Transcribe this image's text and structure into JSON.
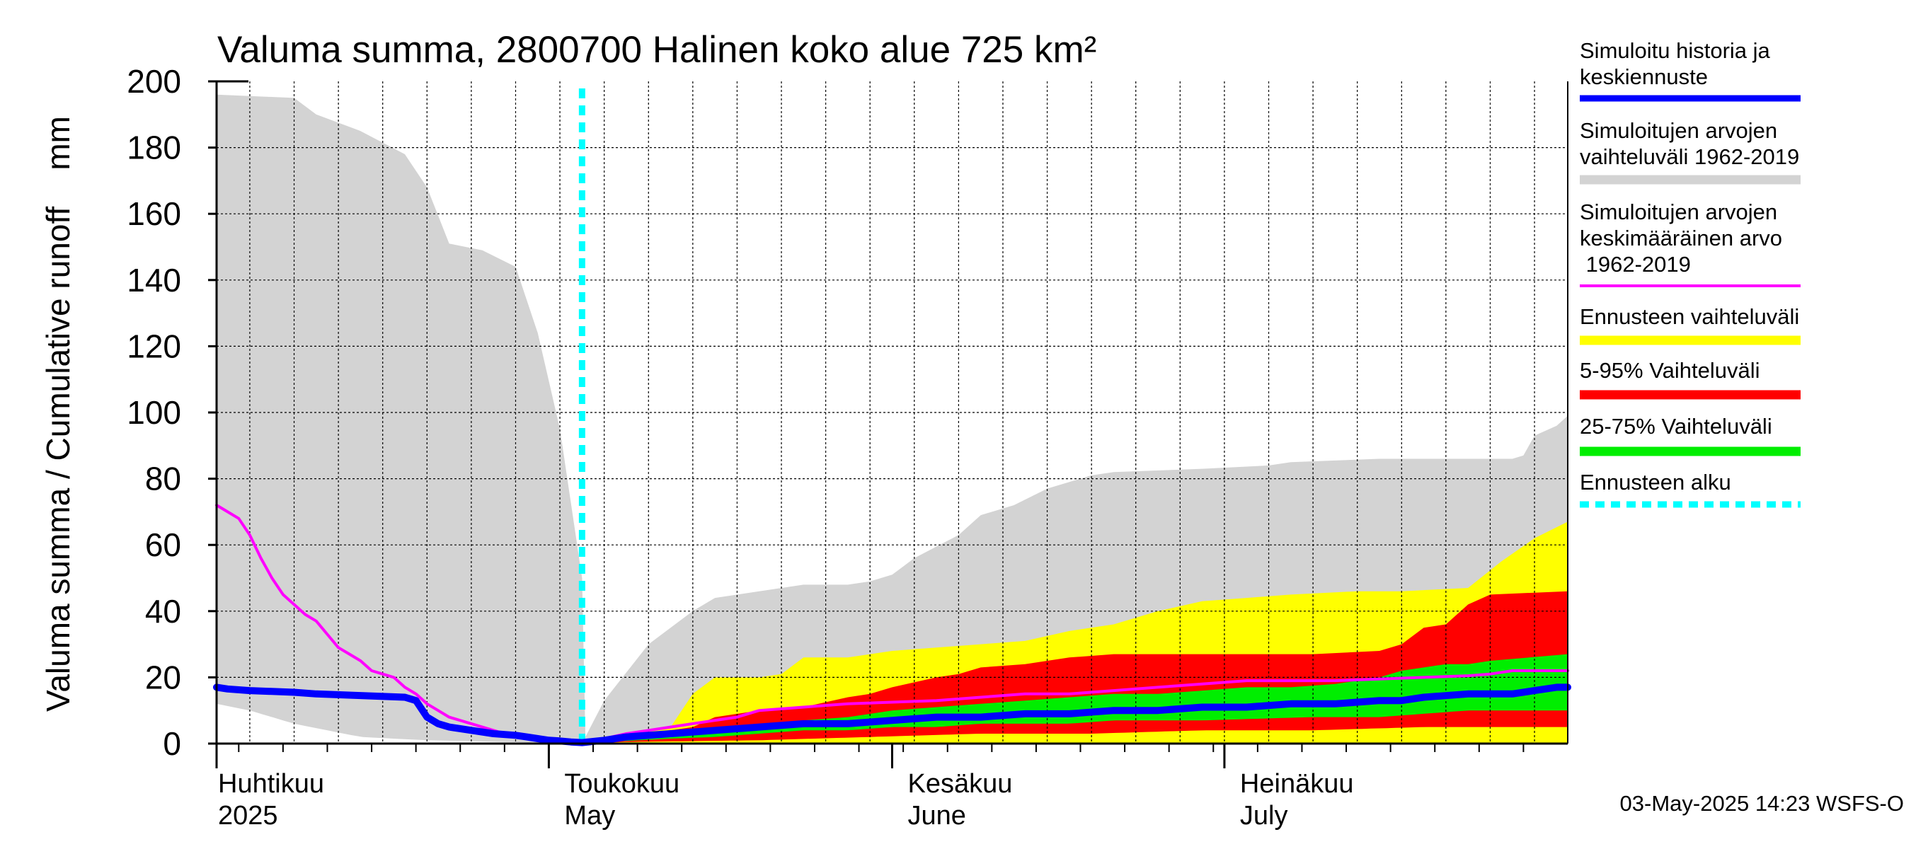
{
  "chart_data": {
    "type": "area",
    "title": "Valuma summa, 2800700 Halinen koko alue 725 km²",
    "ylabel": "Valuma summa / Cumulative runoff    mm",
    "ylim": [
      0,
      200
    ],
    "yticks": [
      0,
      20,
      40,
      60,
      80,
      100,
      120,
      140,
      160,
      180,
      200
    ],
    "grid": true,
    "x_unit": "day of year 2025",
    "xlim": [
      91,
      213
    ],
    "forecast_start": 124,
    "month_labels": [
      {
        "fi": "Huhtikuu",
        "en": "2025",
        "x": 91
      },
      {
        "fi": "Toukokuu",
        "en": "May",
        "x": 121
      },
      {
        "fi": "Kesäkuu",
        "en": "June",
        "x": 152
      },
      {
        "fi": "Heinäkuu",
        "en": "July",
        "x": 182
      }
    ],
    "legend": [
      {
        "label": "Simuloitu historia ja keskiennuste",
        "color": "#0000ff",
        "style": "thick"
      },
      {
        "label": "Simuloitujen arvojen vaihteluväli 1962-2019",
        "color": "#d3d3d3",
        "style": "band"
      },
      {
        "label": "Simuloitujen arvojen keskimääräinen arvo 1962-2019",
        "color": "#ff00ff",
        "style": "line"
      },
      {
        "label": "Ennusteen vaihteluväli",
        "color": "#ffff00",
        "style": "band"
      },
      {
        "label": "5-95% Vaihteluväli",
        "color": "#ff0000",
        "style": "band"
      },
      {
        "label": "25-75% Vaihteluväli",
        "color": "#00ee00",
        "style": "band"
      },
      {
        "label": "Ennusteen alku",
        "color": "#00ffff",
        "style": "dashed"
      }
    ],
    "series": [
      {
        "name": "Simuloitujen arvojen vaihteluväli 1962-2019",
        "kind": "band",
        "color": "#d3d3d3",
        "upper": [
          [
            91,
            196
          ],
          [
            98,
            195
          ],
          [
            100,
            190
          ],
          [
            104,
            185
          ],
          [
            108,
            178
          ],
          [
            110,
            168
          ],
          [
            112,
            151
          ],
          [
            115,
            149
          ],
          [
            118,
            144
          ],
          [
            120,
            124
          ],
          [
            122,
            95
          ],
          [
            124,
            50
          ],
          [
            124.3,
            2
          ],
          [
            126,
            13
          ],
          [
            130,
            30
          ],
          [
            134,
            40
          ],
          [
            136,
            44
          ],
          [
            140,
            46
          ],
          [
            144,
            48
          ],
          [
            148,
            48
          ],
          [
            150,
            49
          ],
          [
            152,
            51
          ],
          [
            154,
            56
          ],
          [
            158,
            63
          ],
          [
            160,
            69
          ],
          [
            163,
            72
          ],
          [
            166,
            77
          ],
          [
            170,
            81
          ],
          [
            172,
            82
          ],
          [
            180,
            83
          ],
          [
            186,
            84
          ],
          [
            188,
            85
          ],
          [
            196,
            86
          ],
          [
            208,
            86
          ],
          [
            209,
            87
          ],
          [
            210,
            93
          ],
          [
            212,
            96
          ],
          [
            213,
            99
          ]
        ],
        "lower": [
          [
            91,
            12
          ],
          [
            94,
            10
          ],
          [
            98,
            6
          ],
          [
            104,
            2
          ],
          [
            110,
            1
          ],
          [
            124,
            0
          ],
          [
            213,
            0
          ]
        ]
      },
      {
        "name": "Ennusteen vaihteluväli",
        "kind": "band",
        "color": "#ffff00",
        "upper": [
          [
            124,
            1
          ],
          [
            128,
            3
          ],
          [
            131,
            4
          ],
          [
            132,
            5
          ],
          [
            134,
            15
          ],
          [
            136,
            20
          ],
          [
            140,
            20
          ],
          [
            142,
            21
          ],
          [
            144,
            26
          ],
          [
            148,
            26
          ],
          [
            152,
            28
          ],
          [
            156,
            29
          ],
          [
            160,
            30
          ],
          [
            164,
            31
          ],
          [
            168,
            34
          ],
          [
            172,
            36
          ],
          [
            176,
            40
          ],
          [
            180,
            43
          ],
          [
            184,
            44
          ],
          [
            188,
            45
          ],
          [
            194,
            46
          ],
          [
            198,
            46
          ],
          [
            204,
            47
          ],
          [
            207,
            55
          ],
          [
            210,
            62
          ],
          [
            213,
            67
          ]
        ],
        "lower": [
          [
            124,
            0
          ],
          [
            213,
            0
          ]
        ]
      },
      {
        "name": "5-95% Vaihteluväli",
        "kind": "band",
        "color": "#ff0000",
        "upper": [
          [
            124,
            0.5
          ],
          [
            128,
            2
          ],
          [
            132,
            4
          ],
          [
            134,
            5
          ],
          [
            136,
            8
          ],
          [
            140,
            10
          ],
          [
            144,
            11
          ],
          [
            148,
            14
          ],
          [
            150,
            15
          ],
          [
            152,
            17
          ],
          [
            156,
            20
          ],
          [
            158,
            21
          ],
          [
            160,
            23
          ],
          [
            164,
            24
          ],
          [
            168,
            26
          ],
          [
            172,
            27
          ],
          [
            180,
            27
          ],
          [
            190,
            27
          ],
          [
            196,
            28
          ],
          [
            198,
            30
          ],
          [
            200,
            35
          ],
          [
            202,
            36
          ],
          [
            204,
            42
          ],
          [
            206,
            45
          ],
          [
            213,
            46
          ]
        ],
        "lower": [
          [
            124,
            0
          ],
          [
            128,
            0.5
          ],
          [
            140,
            1
          ],
          [
            150,
            2
          ],
          [
            160,
            3
          ],
          [
            170,
            3
          ],
          [
            180,
            4
          ],
          [
            190,
            4
          ],
          [
            200,
            5
          ],
          [
            213,
            5
          ]
        ]
      },
      {
        "name": "25-75% Vaihteluväli",
        "kind": "band",
        "color": "#00ee00",
        "upper": [
          [
            124,
            0.3
          ],
          [
            128,
            2
          ],
          [
            132,
            3
          ],
          [
            136,
            4
          ],
          [
            140,
            6
          ],
          [
            144,
            7
          ],
          [
            148,
            8
          ],
          [
            152,
            10
          ],
          [
            156,
            11
          ],
          [
            160,
            12
          ],
          [
            164,
            13
          ],
          [
            168,
            14
          ],
          [
            172,
            15
          ],
          [
            176,
            15
          ],
          [
            180,
            16
          ],
          [
            184,
            17
          ],
          [
            188,
            17
          ],
          [
            192,
            18
          ],
          [
            196,
            20
          ],
          [
            198,
            22
          ],
          [
            200,
            23
          ],
          [
            202,
            24
          ],
          [
            204,
            24
          ],
          [
            206,
            25
          ],
          [
            213,
            27
          ]
        ],
        "lower": [
          [
            124,
            0
          ],
          [
            128,
            0.8
          ],
          [
            132,
            1.5
          ],
          [
            136,
            2
          ],
          [
            140,
            3
          ],
          [
            144,
            4
          ],
          [
            148,
            4
          ],
          [
            152,
            5
          ],
          [
            156,
            5
          ],
          [
            160,
            6
          ],
          [
            164,
            6
          ],
          [
            168,
            6
          ],
          [
            172,
            7
          ],
          [
            180,
            7
          ],
          [
            190,
            8
          ],
          [
            196,
            8
          ],
          [
            200,
            9
          ],
          [
            204,
            10
          ],
          [
            208,
            10
          ],
          [
            213,
            10
          ]
        ]
      },
      {
        "name": "Simuloitujen arvojen keskimääräinen arvo 1962-2019",
        "kind": "line",
        "color": "#ff00ff",
        "points": [
          [
            91,
            72
          ],
          [
            92,
            70
          ],
          [
            93,
            68
          ],
          [
            94,
            63
          ],
          [
            95,
            56
          ],
          [
            96,
            50
          ],
          [
            97,
            45
          ],
          [
            98,
            42
          ],
          [
            99,
            39
          ],
          [
            100,
            37
          ],
          [
            101,
            33
          ],
          [
            102,
            29
          ],
          [
            103,
            27
          ],
          [
            104,
            25
          ],
          [
            105,
            22
          ],
          [
            106,
            21
          ],
          [
            107,
            20
          ],
          [
            108,
            17
          ],
          [
            109,
            15
          ],
          [
            110,
            12
          ],
          [
            111,
            10
          ],
          [
            112,
            8
          ],
          [
            114,
            6
          ],
          [
            116,
            4
          ],
          [
            118,
            2
          ],
          [
            120,
            1
          ],
          [
            122,
            0.5
          ],
          [
            124,
            0.3
          ],
          [
            126,
            1.5
          ],
          [
            128,
            3
          ],
          [
            130,
            4
          ],
          [
            132,
            5
          ],
          [
            134,
            6
          ],
          [
            136,
            7
          ],
          [
            138,
            8
          ],
          [
            140,
            10
          ],
          [
            144,
            11
          ],
          [
            148,
            12
          ],
          [
            152,
            12.5
          ],
          [
            156,
            13
          ],
          [
            160,
            14
          ],
          [
            164,
            15
          ],
          [
            168,
            15
          ],
          [
            172,
            16
          ],
          [
            176,
            17
          ],
          [
            180,
            18
          ],
          [
            184,
            19
          ],
          [
            188,
            19
          ],
          [
            192,
            19
          ],
          [
            196,
            19.5
          ],
          [
            200,
            20
          ],
          [
            204,
            20.5
          ],
          [
            206,
            21
          ],
          [
            208,
            22
          ],
          [
            213,
            22
          ]
        ]
      },
      {
        "name": "Simuloitu historia ja keskiennuste",
        "kind": "line",
        "color": "#0000ff",
        "points": [
          [
            91,
            17
          ],
          [
            92,
            16.5
          ],
          [
            94,
            16
          ],
          [
            98,
            15.5
          ],
          [
            100,
            15
          ],
          [
            104,
            14.5
          ],
          [
            108,
            14
          ],
          [
            109,
            13
          ],
          [
            110,
            8
          ],
          [
            111,
            6
          ],
          [
            112,
            5
          ],
          [
            114,
            4
          ],
          [
            116,
            3
          ],
          [
            118,
            2.5
          ],
          [
            119,
            2
          ],
          [
            120,
            1.5
          ],
          [
            121,
            1
          ],
          [
            122,
            0.8
          ],
          [
            123,
            0.5
          ],
          [
            124,
            0.3
          ],
          [
            126,
            1
          ],
          [
            128,
            2
          ],
          [
            132,
            3
          ],
          [
            136,
            4
          ],
          [
            140,
            5
          ],
          [
            144,
            6
          ],
          [
            148,
            6
          ],
          [
            152,
            7
          ],
          [
            156,
            8
          ],
          [
            160,
            8
          ],
          [
            164,
            9
          ],
          [
            168,
            9
          ],
          [
            172,
            10
          ],
          [
            176,
            10
          ],
          [
            180,
            11
          ],
          [
            184,
            11
          ],
          [
            188,
            12
          ],
          [
            192,
            12
          ],
          [
            196,
            13
          ],
          [
            198,
            13
          ],
          [
            200,
            14
          ],
          [
            204,
            15
          ],
          [
            208,
            15
          ],
          [
            210,
            16
          ],
          [
            212,
            17
          ],
          [
            213,
            17
          ]
        ]
      }
    ]
  },
  "footer": {
    "timestamp": "03-May-2025 14:23 WSFS-O"
  }
}
